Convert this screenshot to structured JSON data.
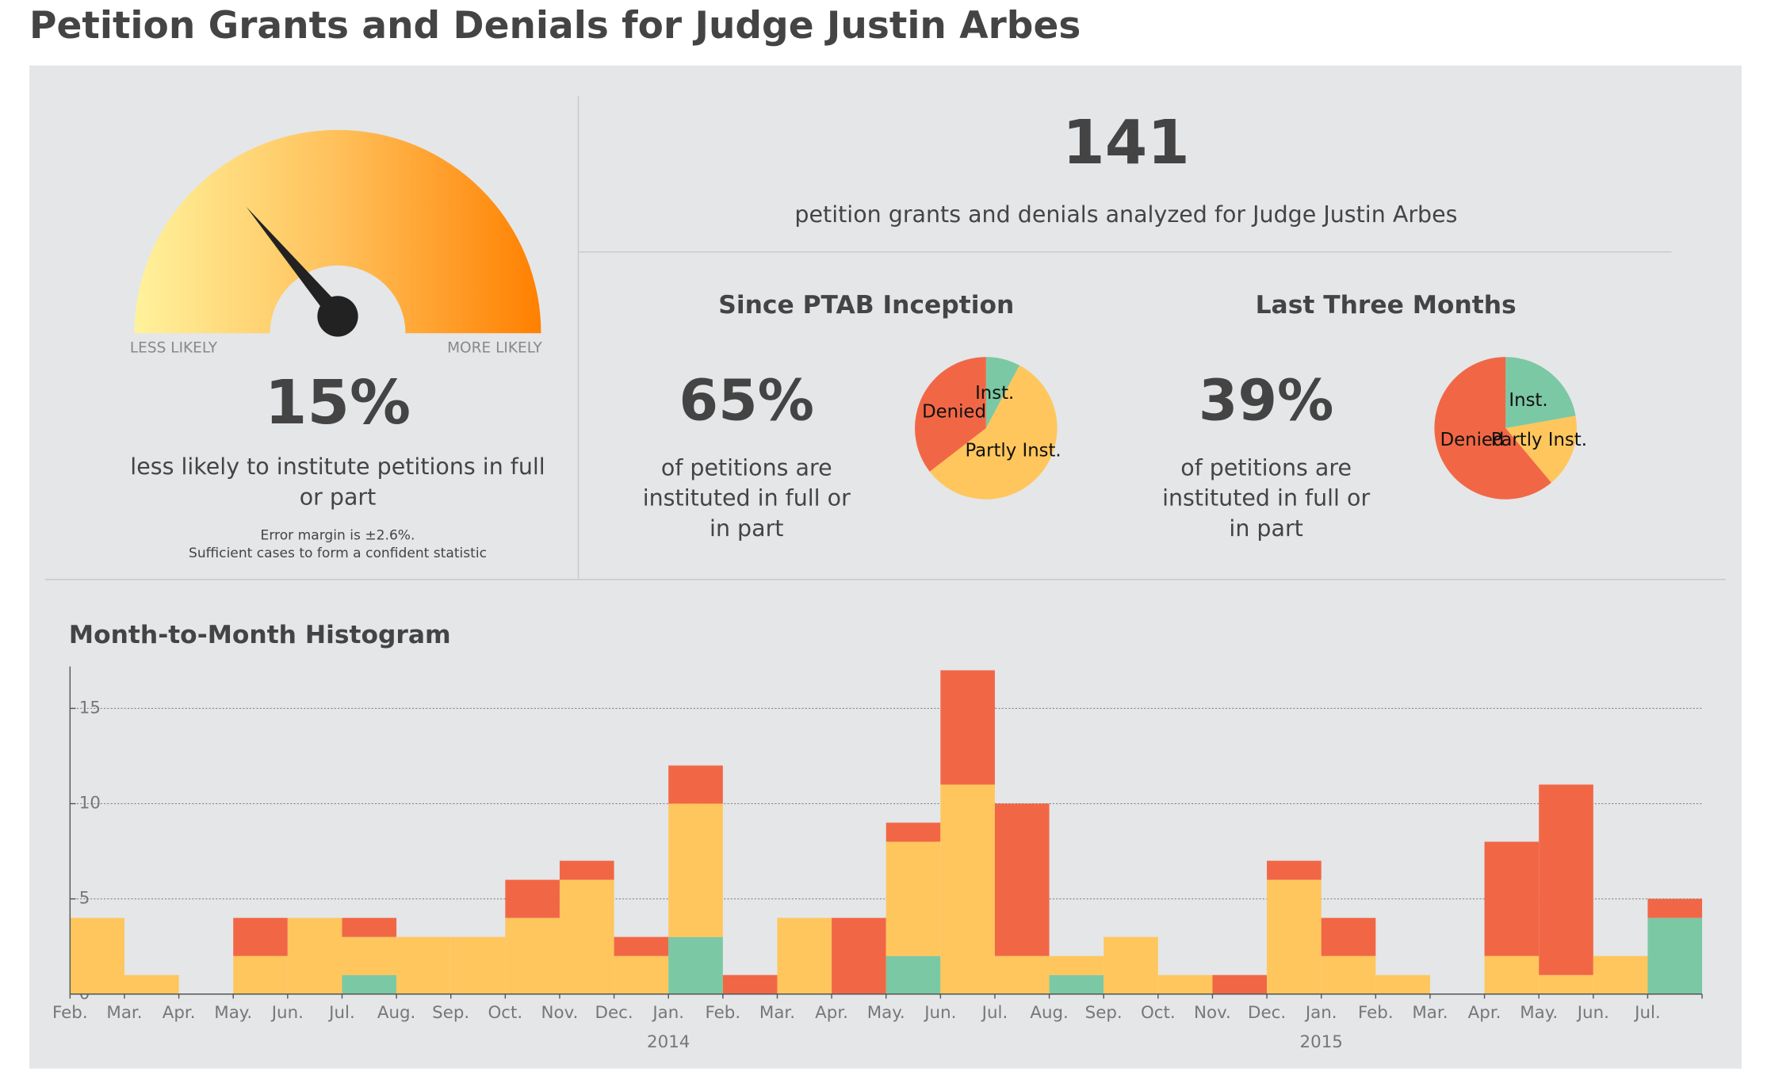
{
  "header": {
    "title": "Petition Grants and Denials for Judge Justin Arbes"
  },
  "gauge": {
    "left_label": "LESS LIKELY",
    "right_label": "MORE LIKELY",
    "value_label": "15%",
    "caption": [
      "less likely to institute petitions in full",
      "or part"
    ],
    "note": [
      "Error margin is ±2.6%.",
      "Sufficient cases to form a confident statistic"
    ]
  },
  "summary": {
    "count": 141,
    "caption": "petition grants and denials analyzed for Judge Justin Arbes"
  },
  "pies": [
    {
      "type": "pie",
      "title": "Since PTAB Inception",
      "value_label": "65%",
      "caption": [
        "of petitions are",
        "instituted in full or",
        "in part"
      ],
      "labels": [
        "Inst.",
        "Partly Inst.",
        "Denied"
      ],
      "colors": [
        "#7bc8a4",
        "#ffc65d",
        "#f16745"
      ],
      "values": [
        11,
        80,
        50
      ]
    },
    {
      "type": "pie",
      "title": "Last Three Months",
      "value_label": "39%",
      "caption": [
        "of petitions are",
        "instituted in full or",
        "in part"
      ],
      "labels": [
        "Inst.",
        "Partly Inst.",
        "Denied"
      ],
      "colors": [
        "#7bc8a4",
        "#ffc65d",
        "#f16745"
      ],
      "values": [
        4,
        3,
        11
      ]
    }
  ],
  "chart_data": {
    "type": "bar",
    "stacked": true,
    "title": "Month-to-Month Histogram",
    "categories": [
      "Feb.",
      "Mar.",
      "Apr.",
      "May.",
      "Jun.",
      "Jul.",
      "Aug.",
      "Sep.",
      "Oct.",
      "Nov.",
      "Dec.",
      "Jan.",
      "Feb.",
      "Mar.",
      "Apr.",
      "May.",
      "Jun.",
      "Jul.",
      "Aug.",
      "Sep.",
      "Oct.",
      "Nov.",
      "Dec.",
      "Jan.",
      "Feb.",
      "Mar.",
      "Apr.",
      "May.",
      "Jun.",
      "Jul."
    ],
    "years": [
      null,
      null,
      null,
      null,
      null,
      null,
      null,
      null,
      null,
      null,
      null,
      "2014",
      null,
      null,
      null,
      null,
      null,
      null,
      null,
      null,
      null,
      null,
      null,
      "2015",
      null,
      null,
      null,
      null,
      null,
      null
    ],
    "series": [
      {
        "color": "#7bc8a4",
        "values": [
          0,
          0,
          0,
          0,
          0,
          1,
          0,
          0,
          0,
          0,
          0,
          3,
          0,
          0,
          0,
          2,
          0,
          0,
          1,
          0,
          0,
          0,
          0,
          0,
          0,
          0,
          0,
          0,
          0,
          4
        ]
      },
      {
        "color": "#ffc65d",
        "values": [
          4,
          1,
          0,
          2,
          4,
          2,
          3,
          3,
          4,
          6,
          2,
          7,
          0,
          4,
          0,
          6,
          11,
          2,
          1,
          3,
          1,
          0,
          6,
          2,
          1,
          0,
          2,
          1,
          2,
          0
        ]
      },
      {
        "color": "#f16745",
        "values": [
          0,
          0,
          0,
          2,
          0,
          1,
          0,
          0,
          2,
          1,
          1,
          2,
          1,
          0,
          4,
          1,
          6,
          8,
          0,
          0,
          0,
          1,
          1,
          2,
          0,
          0,
          6,
          10,
          0,
          1
        ]
      }
    ],
    "ylim": [
      0,
      17.2
    ],
    "yticks": [
      0,
      5,
      10,
      15
    ],
    "grid": true
  }
}
